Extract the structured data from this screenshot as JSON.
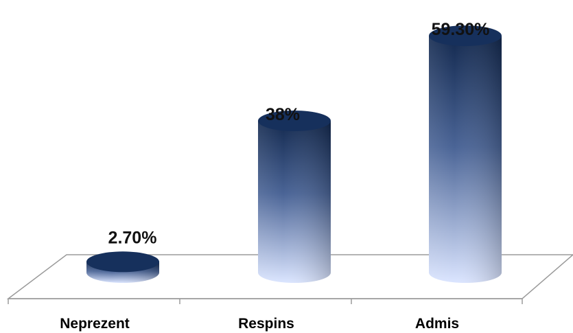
{
  "chart_data": {
    "type": "bar",
    "style": "3d-cylinder",
    "categories": [
      "Neprezent",
      "Respins",
      "Admis"
    ],
    "values": [
      2.7,
      38,
      59.3
    ],
    "data_labels": [
      "2.70%",
      "38%",
      "59.30%"
    ],
    "ylim": [
      0,
      60
    ],
    "grid": false,
    "legend": "none",
    "colors": {
      "bar_dark": "#13294f",
      "bar_light": "#dbe5ff",
      "top_cap": "#16305c",
      "floor_line": "#9a9a9a"
    }
  }
}
